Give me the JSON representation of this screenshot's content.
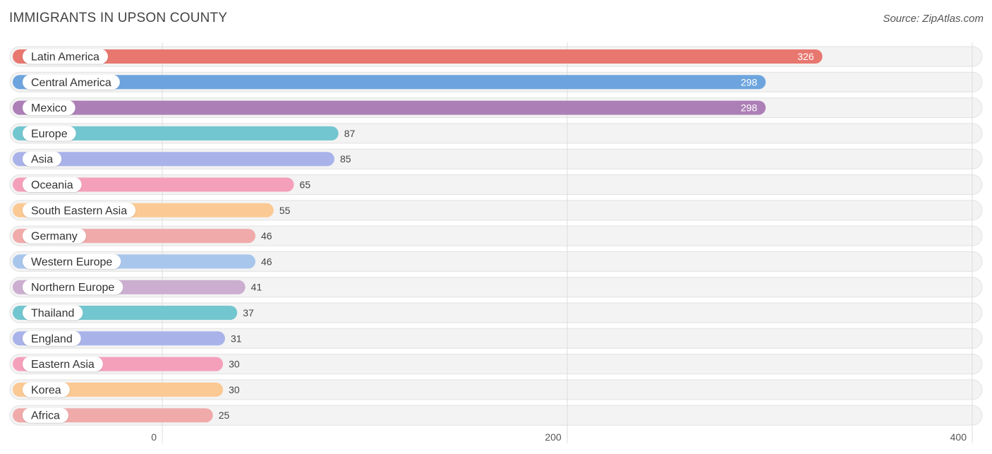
{
  "title": "IMMIGRANTS IN UPSON COUNTY",
  "source": "Source: ZipAtlas.com",
  "chart_data": {
    "type": "bar",
    "orientation": "horizontal",
    "title": "IMMIGRANTS IN UPSON COUNTY",
    "categories": [
      "Latin America",
      "Central America",
      "Mexico",
      "Europe",
      "Asia",
      "Oceania",
      "South Eastern Asia",
      "Germany",
      "Western Europe",
      "Northern Europe",
      "Thailand",
      "England",
      "Eastern Asia",
      "Korea",
      "Africa"
    ],
    "values": [
      326,
      298,
      298,
      87,
      85,
      65,
      55,
      46,
      46,
      41,
      37,
      31,
      30,
      30,
      25
    ],
    "colors": [
      "#e8776f",
      "#6da4de",
      "#ad7fb7",
      "#72c6cf",
      "#a9b3ea",
      "#f5a0bb",
      "#fbc993",
      "#f0aaaa",
      "#a8c6ec",
      "#cbaed0",
      "#72c6cf",
      "#a9b3ea",
      "#f5a0bb",
      "#fbc993",
      "#f0aaaa"
    ],
    "xticks": [
      0,
      200,
      400
    ],
    "xlim": [
      0,
      400
    ],
    "grid": true,
    "value_labels": true
  }
}
